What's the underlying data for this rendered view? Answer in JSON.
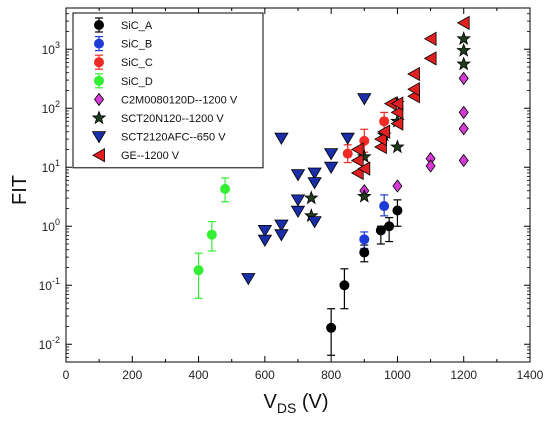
{
  "chart_data": {
    "type": "scatter",
    "title": "",
    "xlabel": "V",
    "xlabel_sub": "DS",
    "xlabel_unit": " (V)",
    "ylabel": "FIT",
    "xlim": [
      0,
      1400
    ],
    "ylim": [
      0.005,
      5000
    ],
    "yscale": "log",
    "xticks": [
      0,
      200,
      400,
      600,
      800,
      1000,
      1200,
      1400
    ],
    "yticks": [
      {
        "value": 0.01,
        "base": "10",
        "exp": "-2"
      },
      {
        "value": 0.1,
        "base": "10",
        "exp": "-1"
      },
      {
        "value": 1,
        "base": "10",
        "exp": "0"
      },
      {
        "value": 10,
        "base": "10",
        "exp": "1"
      },
      {
        "value": 100,
        "base": "10",
        "exp": "2"
      },
      {
        "value": 1000,
        "base": "10",
        "exp": "3"
      }
    ],
    "legend_position": "top-left",
    "series": [
      {
        "name": "SiC_A",
        "marker": "circle",
        "color": "#000000",
        "errorbars": true,
        "points": [
          {
            "x": 800,
            "y": 0.019,
            "lo": 0.0065,
            "hi": 0.04
          },
          {
            "x": 840,
            "y": 0.1,
            "lo": 0.04,
            "hi": 0.19
          },
          {
            "x": 900,
            "y": 0.36,
            "lo": 0.25,
            "hi": 0.48
          },
          {
            "x": 950,
            "y": 0.85,
            "lo": 0.5,
            "hi": 1.0
          },
          {
            "x": 975,
            "y": 1.0,
            "lo": 0.55,
            "hi": 1.4
          },
          {
            "x": 1000,
            "y": 1.85,
            "lo": 1.0,
            "hi": 2.8
          }
        ]
      },
      {
        "name": "SiC_B",
        "marker": "circle",
        "color": "#1f3bd6",
        "errorbars": true,
        "points": [
          {
            "x": 900,
            "y": 0.6,
            "lo": 0.42,
            "hi": 0.8
          },
          {
            "x": 960,
            "y": 2.2,
            "lo": 1.5,
            "hi": 3.4
          }
        ]
      },
      {
        "name": "SiC_C",
        "marker": "circle",
        "color": "#ee2a24",
        "errorbars": true,
        "points": [
          {
            "x": 850,
            "y": 17,
            "lo": 12,
            "hi": 24
          },
          {
            "x": 900,
            "y": 28,
            "lo": 18,
            "hi": 44
          },
          {
            "x": 960,
            "y": 60,
            "lo": 42,
            "hi": 85
          }
        ]
      },
      {
        "name": "SiC_D",
        "marker": "circle",
        "color": "#33ee33",
        "errorbars": true,
        "points": [
          {
            "x": 400,
            "y": 0.18,
            "lo": 0.06,
            "hi": 0.35
          },
          {
            "x": 440,
            "y": 0.72,
            "lo": 0.38,
            "hi": 1.2
          },
          {
            "x": 480,
            "y": 4.3,
            "lo": 2.6,
            "hi": 6.6
          }
        ]
      },
      {
        "name": "C2M0080120D--1200 V",
        "marker": "diamond",
        "color": "#d63ad6",
        "points": [
          {
            "x": 900,
            "y": 4.0
          },
          {
            "x": 1000,
            "y": 4.8
          },
          {
            "x": 1100,
            "y": 14
          },
          {
            "x": 1100,
            "y": 10.5
          },
          {
            "x": 1200,
            "y": 13
          },
          {
            "x": 1200,
            "y": 45
          },
          {
            "x": 1200,
            "y": 85
          },
          {
            "x": 1200,
            "y": 320
          }
        ]
      },
      {
        "name": "SCT20N120--1200 V",
        "marker": "star",
        "color": "#1e3d1e",
        "points": [
          {
            "x": 740,
            "y": 3.0
          },
          {
            "x": 740,
            "y": 1.5
          },
          {
            "x": 900,
            "y": 3.2
          },
          {
            "x": 900,
            "y": 15
          },
          {
            "x": 960,
            "y": 35
          },
          {
            "x": 1000,
            "y": 22
          },
          {
            "x": 1000,
            "y": 60
          },
          {
            "x": 1000,
            "y": 120
          },
          {
            "x": 1200,
            "y": 1500
          },
          {
            "x": 1200,
            "y": 950
          },
          {
            "x": 1200,
            "y": 560
          }
        ]
      },
      {
        "name": "SCT2120AFC--650 V",
        "marker": "triangle-down",
        "color": "#1a2ea8",
        "points": [
          {
            "x": 550,
            "y": 0.13
          },
          {
            "x": 600,
            "y": 0.85
          },
          {
            "x": 600,
            "y": 0.58
          },
          {
            "x": 650,
            "y": 1.05
          },
          {
            "x": 650,
            "y": 0.72
          },
          {
            "x": 650,
            "y": 31
          },
          {
            "x": 700,
            "y": 2.8
          },
          {
            "x": 700,
            "y": 7.5
          },
          {
            "x": 700,
            "y": 1.8
          },
          {
            "x": 750,
            "y": 8.0
          },
          {
            "x": 750,
            "y": 5.5
          },
          {
            "x": 750,
            "y": 1.2
          },
          {
            "x": 800,
            "y": 17
          },
          {
            "x": 800,
            "y": 10
          },
          {
            "x": 850,
            "y": 31
          },
          {
            "x": 900,
            "y": 145
          }
        ]
      },
      {
        "name": "GE--1200 V",
        "marker": "triangle-left",
        "color": "#e02020",
        "points": [
          {
            "x": 880,
            "y": 8.0
          },
          {
            "x": 880,
            "y": 13
          },
          {
            "x": 880,
            "y": 20
          },
          {
            "x": 900,
            "y": 9.5
          },
          {
            "x": 950,
            "y": 22
          },
          {
            "x": 950,
            "y": 30
          },
          {
            "x": 960,
            "y": 40
          },
          {
            "x": 980,
            "y": 120
          },
          {
            "x": 1000,
            "y": 55
          },
          {
            "x": 1000,
            "y": 85
          },
          {
            "x": 1000,
            "y": 120
          },
          {
            "x": 1050,
            "y": 160
          },
          {
            "x": 1050,
            "y": 210
          },
          {
            "x": 1050,
            "y": 380
          },
          {
            "x": 1100,
            "y": 700
          },
          {
            "x": 1100,
            "y": 1500
          },
          {
            "x": 1200,
            "y": 2800
          }
        ]
      }
    ]
  }
}
